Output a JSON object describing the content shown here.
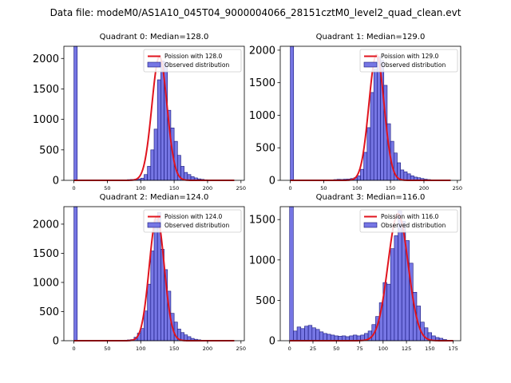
{
  "suptitle": "Data file: modeM0/AS1A10_045T04_9000004066_28151cztM0_level2_quad_clean.evt",
  "colors": {
    "bar_fill": "#7676e4",
    "bar_edge": "#14147a",
    "fit_line": "#e0141e"
  },
  "chart_data": [
    {
      "type": "bar",
      "title": "Quadrant 0: Median=128.0",
      "xlim": [
        -15,
        255
      ],
      "ylim": [
        0,
        2200
      ],
      "xticks": [
        0,
        50,
        100,
        150,
        200,
        250
      ],
      "yticks": [
        0,
        500,
        1000,
        1500,
        2000
      ],
      "bin_width": 5,
      "bins": [
        [
          0,
          2200
        ],
        [
          75,
          6
        ],
        [
          80,
          12
        ],
        [
          85,
          14
        ],
        [
          90,
          18
        ],
        [
          95,
          24
        ],
        [
          100,
          36
        ],
        [
          105,
          95
        ],
        [
          110,
          230
        ],
        [
          115,
          500
        ],
        [
          120,
          840
        ],
        [
          125,
          1650
        ],
        [
          130,
          1960
        ],
        [
          135,
          1940
        ],
        [
          140,
          1150
        ],
        [
          145,
          860
        ],
        [
          150,
          640
        ],
        [
          155,
          410
        ],
        [
          160,
          230
        ],
        [
          165,
          130
        ],
        [
          170,
          95
        ],
        [
          175,
          60
        ],
        [
          180,
          40
        ],
        [
          185,
          24
        ],
        [
          190,
          16
        ],
        [
          195,
          10
        ],
        [
          200,
          5
        ]
      ],
      "fit": {
        "type": "poisson",
        "lambda": 128.0,
        "peak": 2030,
        "x_range": [
          0,
          240
        ]
      },
      "legend": {
        "position": "top-right",
        "entries": [
          "Poission with 128.0",
          "Observed distribution"
        ]
      }
    },
    {
      "type": "bar",
      "title": "Quadrant 1: Median=129.0",
      "xlim": [
        -15,
        255
      ],
      "ylim": [
        0,
        2060
      ],
      "xticks": [
        0,
        50,
        100,
        150,
        200,
        250
      ],
      "yticks": [
        0,
        500,
        1000,
        1500,
        2000
      ],
      "bin_width": 5,
      "bins": [
        [
          0,
          2060
        ],
        [
          60,
          8
        ],
        [
          65,
          12
        ],
        [
          70,
          16
        ],
        [
          75,
          14
        ],
        [
          80,
          18
        ],
        [
          85,
          20
        ],
        [
          90,
          28
        ],
        [
          95,
          40
        ],
        [
          100,
          70
        ],
        [
          105,
          170
        ],
        [
          110,
          430
        ],
        [
          115,
          810
        ],
        [
          120,
          1350
        ],
        [
          125,
          1710
        ],
        [
          130,
          1900
        ],
        [
          135,
          1840
        ],
        [
          140,
          1460
        ],
        [
          145,
          870
        ],
        [
          150,
          600
        ],
        [
          155,
          420
        ],
        [
          160,
          270
        ],
        [
          165,
          160
        ],
        [
          170,
          130
        ],
        [
          175,
          100
        ],
        [
          180,
          70
        ],
        [
          185,
          50
        ],
        [
          190,
          40
        ],
        [
          195,
          28
        ],
        [
          200,
          18
        ],
        [
          205,
          12
        ],
        [
          210,
          8
        ]
      ],
      "fit": {
        "type": "poisson",
        "lambda": 129.0,
        "peak": 1930,
        "x_range": [
          0,
          240
        ]
      },
      "legend": {
        "position": "top-right",
        "entries": [
          "Poission with 129.0",
          "Observed distribution"
        ]
      }
    },
    {
      "type": "bar",
      "title": "Quadrant 2: Median=124.0",
      "xlim": [
        -15,
        255
      ],
      "ylim": [
        0,
        2300
      ],
      "xticks": [
        0,
        50,
        100,
        150,
        200,
        250
      ],
      "yticks": [
        0,
        500,
        1000,
        1500,
        2000
      ],
      "bin_width": 5,
      "bins": [
        [
          0,
          2300
        ],
        [
          75,
          10
        ],
        [
          80,
          14
        ],
        [
          85,
          20
        ],
        [
          90,
          60
        ],
        [
          95,
          130
        ],
        [
          100,
          210
        ],
        [
          105,
          510
        ],
        [
          110,
          970
        ],
        [
          115,
          1540
        ],
        [
          120,
          2080
        ],
        [
          125,
          2200
        ],
        [
          130,
          1570
        ],
        [
          135,
          1220
        ],
        [
          140,
          850
        ],
        [
          145,
          470
        ],
        [
          150,
          320
        ],
        [
          155,
          200
        ],
        [
          160,
          140
        ],
        [
          165,
          100
        ],
        [
          170,
          70
        ],
        [
          175,
          40
        ],
        [
          180,
          25
        ],
        [
          185,
          15
        ]
      ],
      "fit": {
        "type": "poisson",
        "lambda": 124.0,
        "peak": 2130,
        "x_range": [
          0,
          240
        ]
      },
      "legend": {
        "position": "top-right",
        "entries": [
          "Poission with 124.0",
          "Observed distribution"
        ]
      }
    },
    {
      "type": "bar",
      "title": "Quadrant 3: Median=116.0",
      "xlim": [
        -10,
        183
      ],
      "ylim": [
        0,
        1660
      ],
      "xticks": [
        0,
        25,
        50,
        75,
        100,
        125,
        150,
        175
      ],
      "yticks": [
        0,
        500,
        1000,
        1500
      ],
      "bin_width": 4,
      "bins": [
        [
          0,
          1660
        ],
        [
          4,
          120
        ],
        [
          8,
          170
        ],
        [
          12,
          150
        ],
        [
          16,
          180
        ],
        [
          20,
          190
        ],
        [
          24,
          160
        ],
        [
          28,
          140
        ],
        [
          32,
          110
        ],
        [
          36,
          90
        ],
        [
          40,
          80
        ],
        [
          44,
          70
        ],
        [
          48,
          60
        ],
        [
          52,
          55
        ],
        [
          56,
          60
        ],
        [
          60,
          50
        ],
        [
          64,
          60
        ],
        [
          68,
          70
        ],
        [
          72,
          60
        ],
        [
          76,
          70
        ],
        [
          80,
          90
        ],
        [
          84,
          120
        ],
        [
          88,
          200
        ],
        [
          92,
          300
        ],
        [
          96,
          470
        ],
        [
          100,
          720
        ],
        [
          104,
          700
        ],
        [
          108,
          1140
        ],
        [
          112,
          1300
        ],
        [
          116,
          1610
        ],
        [
          120,
          1480
        ],
        [
          124,
          1240
        ],
        [
          128,
          960
        ],
        [
          132,
          600
        ],
        [
          136,
          430
        ],
        [
          140,
          230
        ],
        [
          144,
          160
        ],
        [
          148,
          100
        ],
        [
          152,
          60
        ],
        [
          156,
          40
        ],
        [
          160,
          30
        ],
        [
          164,
          15
        ]
      ],
      "fit": {
        "type": "poisson",
        "lambda": 116.0,
        "peak": 1570,
        "x_range": [
          0,
          175
        ]
      },
      "legend": {
        "position": "top-right",
        "entries": [
          "Poission with 116.0",
          "Observed distribution"
        ]
      }
    }
  ]
}
